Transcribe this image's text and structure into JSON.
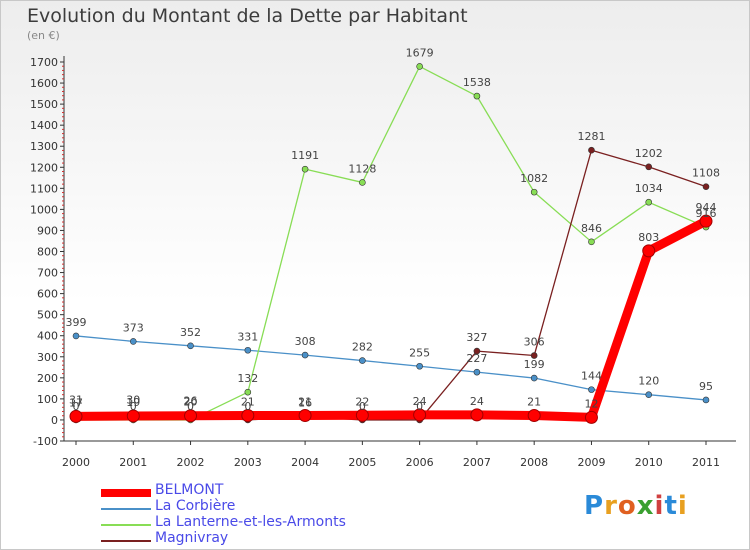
{
  "header": {
    "title": "Evolution du Montant de la Dette par Habitant",
    "unit": "(en €)"
  },
  "brand": {
    "logo": "Proxiti"
  },
  "chart_data": {
    "type": "line",
    "title": "Evolution du Montant de la Dette par Habitant",
    "ylabel": "(en €)",
    "xlabel": "",
    "ylim": [
      -100,
      1700
    ],
    "yticks": [
      -100,
      0,
      100,
      200,
      300,
      400,
      500,
      600,
      700,
      800,
      900,
      1000,
      1100,
      1200,
      1300,
      1400,
      1500,
      1600,
      1700
    ],
    "categories": [
      "2000",
      "2001",
      "2002",
      "2003",
      "2004",
      "2005",
      "2006",
      "2007",
      "2008",
      "2009",
      "2010",
      "2011"
    ],
    "series": [
      {
        "name": "BELMONT",
        "color": "#ff0000",
        "values": [
          17,
          19,
          20,
          21,
          21,
          22,
          24,
          24,
          21,
          12,
          803,
          944
        ],
        "labels": [
          "17",
          "19",
          "20",
          "21",
          "21",
          "22",
          "24",
          "24",
          "21",
          "12",
          "803",
          "944"
        ]
      },
      {
        "name": "La Corbière",
        "color": "#4a90c8",
        "values": [
          399,
          373,
          352,
          331,
          308,
          282,
          255,
          227,
          199,
          144,
          120,
          95
        ],
        "labels": [
          "399",
          "373",
          "352",
          "331",
          "308",
          "282",
          "255",
          "227",
          "199",
          "144",
          "120",
          "95"
        ]
      },
      {
        "name": "La Lanterne-et-les-Armonts",
        "color": "#88dd55",
        "values": [
          0,
          0,
          0,
          132,
          1191,
          1128,
          1679,
          1538,
          1082,
          846,
          1034,
          916
        ],
        "labels": [
          "0",
          "0",
          "0",
          "132",
          "1191",
          "1128",
          "1679",
          "1538",
          "1082",
          "846",
          "1034",
          "916"
        ]
      },
      {
        "name": "Magnivray",
        "color": "#7a2020",
        "values": [
          31,
          30,
          26,
          0,
          16,
          0,
          0,
          327,
          306,
          1281,
          1202,
          1108
        ],
        "labels": [
          "31",
          "30",
          "26",
          "0",
          "16",
          "0",
          "0",
          "327",
          "306",
          "1281",
          "1202",
          "1108"
        ]
      }
    ],
    "grid": false,
    "legend_position": "bottom-left"
  }
}
